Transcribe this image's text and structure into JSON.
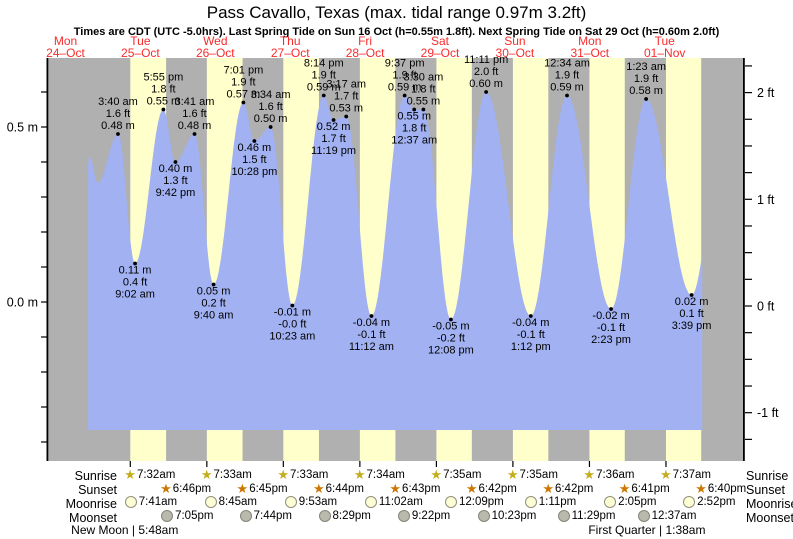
{
  "title": "Pass Cavallo, Texas (max. tidal range 0.97m 3.2ft)",
  "subtitle": "Times are CDT (UTC -5.0hrs). Last Spring Tide on Sun 16 Oct (h=0.55m 1.8ft). Next Spring Tide on Sat 29 Oct (h=0.60m 2.0ft)",
  "colors": {
    "night_band": "#b0b0b0",
    "day_band": "#ffffcc",
    "tide_fill": "#a1b1f1",
    "date_red": "#fa2b2b",
    "sunrise_star": "#c4ad1c",
    "sunset_star": "#cc7700",
    "axis": "#000000"
  },
  "chart_data": {
    "type": "area",
    "title": "Tide height curve",
    "y_axis_left": {
      "unit": "m",
      "tick_interval_m": 0.1,
      "labels": [
        {
          "m": 0.5,
          "text": "0.5 m"
        },
        {
          "m": 0.0,
          "text": "0.0 m"
        }
      ]
    },
    "y_axis_right": {
      "unit": "ft",
      "tick_interval_ft": 0.25,
      "labels": [
        {
          "ft": 2,
          "text": "2 ft"
        },
        {
          "ft": 1,
          "text": "1 ft"
        },
        {
          "ft": 0,
          "text": "0 ft"
        },
        {
          "ft": -1,
          "text": "-1 ft"
        }
      ]
    },
    "days": [
      {
        "name": "Mon",
        "date": "24–Oct"
      },
      {
        "name": "Tue",
        "date": "25–Oct"
      },
      {
        "name": "Wed",
        "date": "26–Oct"
      },
      {
        "name": "Thu",
        "date": "27–Oct"
      },
      {
        "name": "Fri",
        "date": "28–Oct"
      },
      {
        "name": "Sat",
        "date": "29–Oct"
      },
      {
        "name": "Sun",
        "date": "30–Oct"
      },
      {
        "name": "Mon",
        "date": "31–Oct"
      },
      {
        "name": "Tue",
        "date": "01–Nov"
      }
    ],
    "tide_events": [
      {
        "day": 1,
        "time": "3:40 am",
        "m": "0.48",
        "ft": "1.6",
        "type": "H"
      },
      {
        "day": 1,
        "time": "9:02 am",
        "m": "0.11",
        "ft": "0.4",
        "type": "L"
      },
      {
        "day": 1,
        "time": "5:55 pm",
        "m": "0.55",
        "ft": "1.8",
        "type": "H"
      },
      {
        "day": 1,
        "time": "9:42 pm",
        "m": "0.40",
        "ft": "1.3",
        "type": "L"
      },
      {
        "day": 2,
        "time": "3:41 am",
        "m": "0.48",
        "ft": "1.6",
        "type": "H"
      },
      {
        "day": 2,
        "time": "9:40 am",
        "m": "0.05",
        "ft": "0.2",
        "type": "L"
      },
      {
        "day": 2,
        "time": "7:01 pm",
        "m": "0.57",
        "ft": "1.9",
        "type": "H"
      },
      {
        "day": 2,
        "time": "10:28 pm",
        "m": "0.46",
        "ft": "1.5",
        "type": "L"
      },
      {
        "day": 3,
        "time": "3:34 am",
        "m": "0.50",
        "ft": "1.6",
        "type": "H"
      },
      {
        "day": 3,
        "time": "10:23 am",
        "m": "-0.01",
        "ft": "-0.0",
        "type": "L"
      },
      {
        "day": 3,
        "time": "8:14 pm",
        "m": "0.59",
        "ft": "1.9",
        "type": "H"
      },
      {
        "day": 3,
        "time": "11:19 pm",
        "m": "0.52",
        "ft": "1.7",
        "type": "L"
      },
      {
        "day": 4,
        "time": "3:17 am",
        "m": "0.53",
        "ft": "1.7",
        "type": "H"
      },
      {
        "day": 4,
        "time": "11:12 am",
        "m": "-0.04",
        "ft": "-0.1",
        "type": "L"
      },
      {
        "day": 4,
        "time": "9:37 pm",
        "m": "0.59",
        "ft": "1.9",
        "type": "H"
      },
      {
        "day": 5,
        "time": "12:37 am",
        "m": "0.55",
        "ft": "1.8",
        "type": "L"
      },
      {
        "day": 5,
        "time": "3:30 am",
        "m": "0.55",
        "ft": "1.8",
        "type": "H"
      },
      {
        "day": 5,
        "time": "12:08 pm",
        "m": "-0.05",
        "ft": "-0.2",
        "type": "L"
      },
      {
        "day": 5,
        "time": "11:11 pm",
        "m": "0.60",
        "ft": "2.0",
        "type": "H"
      },
      {
        "day": 6,
        "time": "1:12 pm",
        "m": "-0.04",
        "ft": "-0.1",
        "type": "L"
      },
      {
        "day": 7,
        "time": "12:34 am",
        "m": "0.59",
        "ft": "1.9",
        "type": "H"
      },
      {
        "day": 7,
        "time": "2:23 pm",
        "m": "-0.02",
        "ft": "-0.1",
        "type": "L"
      },
      {
        "day": 8,
        "time": "1:23 am",
        "m": "0.58",
        "ft": "1.9",
        "type": "H"
      },
      {
        "day": 8,
        "time": "3:39 pm",
        "m": "0.02",
        "ft": "0.1",
        "type": "L"
      }
    ],
    "curve_unlabeled": [
      {
        "t": 18.3,
        "m": 0.4
      },
      {
        "t": 18.8,
        "m": 0.415
      },
      {
        "t": 21.3,
        "m": 0.34
      },
      {
        "t": 218.3,
        "m": 0.55
      }
    ],
    "curve_start_t": 18.3,
    "curve_end_t": 211.0
  },
  "astro": {
    "rows": [
      {
        "id": "sunrise",
        "label": "Sunrise",
        "icon": "sunrise-star-icon",
        "entries": [
          {
            "day": 1,
            "time": "7:32am"
          },
          {
            "day": 2,
            "time": "7:33am"
          },
          {
            "day": 3,
            "time": "7:33am"
          },
          {
            "day": 4,
            "time": "7:34am"
          },
          {
            "day": 5,
            "time": "7:35am"
          },
          {
            "day": 6,
            "time": "7:35am"
          },
          {
            "day": 7,
            "time": "7:36am"
          },
          {
            "day": 8,
            "time": "7:37am"
          }
        ]
      },
      {
        "id": "sunset",
        "label": "Sunset",
        "icon": "sunset-star-icon",
        "entries": [
          {
            "day": 1,
            "time": "6:46pm"
          },
          {
            "day": 2,
            "time": "6:45pm"
          },
          {
            "day": 3,
            "time": "6:44pm"
          },
          {
            "day": 4,
            "time": "6:43pm"
          },
          {
            "day": 5,
            "time": "6:42pm"
          },
          {
            "day": 6,
            "time": "6:42pm"
          },
          {
            "day": 7,
            "time": "6:41pm"
          },
          {
            "day": 8,
            "time": "6:40pm"
          }
        ]
      },
      {
        "id": "moonrise",
        "label": "Moonrise",
        "icon": "moonrise-circle-icon",
        "entries": [
          {
            "day": 1,
            "time": "7:41am"
          },
          {
            "day": 2,
            "time": "8:45am"
          },
          {
            "day": 3,
            "time": "9:53am"
          },
          {
            "day": 4,
            "time": "11:02am"
          },
          {
            "day": 5,
            "time": "12:09pm"
          },
          {
            "day": 6,
            "time": "1:11pm"
          },
          {
            "day": 7,
            "time": "2:05pm"
          },
          {
            "day": 8,
            "time": "2:52pm"
          }
        ]
      },
      {
        "id": "moonset",
        "label": "Moonset",
        "icon": "moonset-circle-icon",
        "entries": [
          {
            "day": 1,
            "time": "7:05pm"
          },
          {
            "day": 2,
            "time": "7:44pm"
          },
          {
            "day": 3,
            "time": "8:29pm"
          },
          {
            "day": 4,
            "time": "9:22pm"
          },
          {
            "day": 5,
            "time": "10:23pm"
          },
          {
            "day": 6,
            "time": "11:29pm"
          },
          {
            "day": 8,
            "time": "12:37am"
          }
        ]
      }
    ],
    "notes": [
      {
        "display": "New Moon | 5:48am",
        "day": 1,
        "time": "5:48am"
      },
      {
        "display": "First Quarter | 1:38am",
        "day": 8,
        "time": "1:38am"
      }
    ]
  }
}
